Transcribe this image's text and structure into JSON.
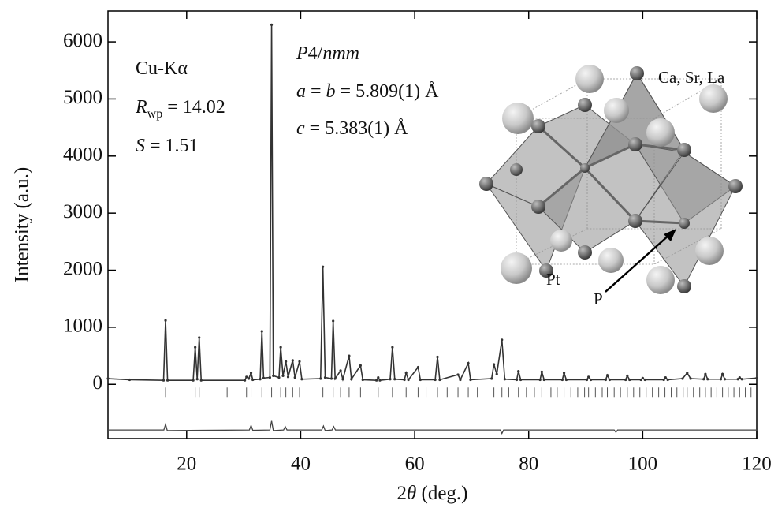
{
  "chart_data": {
    "type": "line",
    "y_label": "Intensity (a.u.)",
    "x_label": [
      {
        "text": "2"
      },
      {
        "text": "θ",
        "italic": true
      },
      {
        "text": " (deg.)"
      }
    ],
    "xlim": [
      6.2,
      120
    ],
    "ylim": [
      -950,
      6540
    ],
    "xticks": [
      20,
      40,
      60,
      80,
      100,
      120
    ],
    "yticks": [
      0,
      1000,
      2000,
      3000,
      4000,
      5000,
      6000
    ],
    "annotations": [
      {
        "parts": [
          {
            "text": "Cu-Kα"
          }
        ]
      },
      {
        "parts": [
          {
            "text": "R",
            "italic": true
          },
          {
            "text": "wp",
            "subscript": true
          },
          {
            "text": " = 14.02"
          }
        ]
      },
      {
        "parts": [
          {
            "text": "S",
            "italic": true
          },
          {
            "text": " = 1.51"
          }
        ]
      },
      {
        "parts": [
          {
            "text": "P",
            "italic": true
          },
          {
            "text": "4/"
          },
          {
            "text": "nmm",
            "italic": true
          }
        ]
      },
      {
        "parts": [
          {
            "text": "a",
            "italic": true
          },
          {
            "text": " = "
          },
          {
            "text": "b",
            "italic": true
          },
          {
            "text": " = 5.809(1) Å"
          }
        ]
      },
      {
        "parts": [
          {
            "text": "c",
            "italic": true
          },
          {
            "text": " = 5.383(1) Å"
          }
        ]
      },
      {
        "parts": [
          {
            "text": "Ca, Sr, La"
          }
        ]
      },
      {
        "parts": [
          {
            "text": "Pt"
          }
        ]
      },
      {
        "parts": [
          {
            "text": "P"
          }
        ]
      }
    ],
    "observed": {
      "color": "#333333",
      "x": [
        6.2,
        10,
        15.95,
        16.3,
        16.65,
        21.15,
        21.5,
        21.85,
        22.2,
        22.55,
        30.2,
        30.5,
        30.9,
        31.3,
        31.6,
        32.9,
        33.2,
        33.5,
        34.6,
        34.9,
        35.2,
        36.2,
        36.5,
        36.9,
        37.4,
        37.8,
        38.6,
        39.0,
        39.8,
        40.2,
        43.5,
        43.9,
        44.3,
        45.4,
        45.7,
        46.05,
        47.0,
        47.4,
        48.5,
        48.9,
        50.5,
        50.9,
        53.3,
        53.6,
        53.9,
        55.7,
        56.1,
        56.5,
        58.2,
        58.5,
        58.9,
        60.6,
        61.0,
        63.6,
        64.0,
        64.4,
        67.6,
        68.0,
        69.4,
        69.8,
        73.5,
        73.9,
        74.4,
        75.3,
        75.8,
        77.9,
        78.2,
        78.6,
        82.0,
        82.3,
        82.7,
        85.9,
        86.2,
        86.6,
        90.2,
        90.5,
        90.9,
        93.5,
        93.8,
        94.2,
        97.0,
        97.3,
        97.7,
        99.7,
        100.0,
        100.4,
        103.7,
        104.0,
        104.4,
        107.0,
        107.8,
        108.4,
        110.7,
        111.0,
        111.4,
        113.7,
        114.0,
        114.4,
        116.7,
        117.0,
        117.4,
        120
      ],
      "values": [
        100,
        80,
        70,
        1120,
        70,
        70,
        650,
        90,
        820,
        70,
        70,
        130,
        100,
        200,
        80,
        90,
        930,
        110,
        120,
        6300,
        150,
        120,
        650,
        150,
        400,
        130,
        420,
        120,
        400,
        90,
        100,
        2060,
        120,
        100,
        1110,
        100,
        240,
        90,
        500,
        90,
        330,
        80,
        70,
        120,
        70,
        90,
        650,
        90,
        80,
        200,
        80,
        300,
        80,
        80,
        480,
        80,
        170,
        80,
        370,
        80,
        100,
        350,
        180,
        780,
        90,
        80,
        230,
        80,
        80,
        220,
        80,
        80,
        200,
        80,
        80,
        130,
        80,
        80,
        160,
        80,
        80,
        150,
        80,
        80,
        110,
        80,
        80,
        120,
        80,
        100,
        200,
        100,
        90,
        180,
        90,
        90,
        180,
        90,
        90,
        120,
        90,
        110
      ]
    },
    "difference": {
      "color": "#444444",
      "x": [
        6.2,
        16.0,
        16.3,
        16.6,
        31.0,
        31.3,
        31.6,
        34.6,
        34.9,
        35.2,
        37.0,
        37.3,
        37.6,
        43.7,
        44.0,
        44.3,
        45.5,
        45.8,
        46.1,
        75.0,
        75.3,
        75.6,
        95.0,
        95.3,
        95.6,
        120
      ],
      "values": [
        -800,
        -800,
        -700,
        -810,
        -800,
        -720,
        -805,
        -800,
        -640,
        -810,
        -800,
        -740,
        -800,
        -800,
        -730,
        -810,
        -800,
        -740,
        -800,
        -800,
        -860,
        -800,
        -800,
        -840,
        -800,
        -800
      ]
    },
    "reflections": {
      "color": "#555555",
      "x": [
        16.3,
        21.5,
        22.2,
        27.1,
        30.5,
        31.3,
        33.2,
        34.9,
        36.5,
        37.4,
        38.6,
        39.8,
        43.9,
        45.7,
        47.0,
        48.5,
        50.5,
        53.6,
        56.1,
        58.5,
        60.6,
        62.0,
        64.0,
        65.7,
        67.6,
        69.4,
        71.0,
        73.9,
        75.3,
        76.5,
        78.2,
        79.6,
        81.0,
        82.3,
        83.9,
        85.0,
        86.2,
        87.4,
        88.6,
        89.8,
        90.5,
        91.7,
        92.9,
        93.8,
        95.0,
        96.1,
        97.3,
        98.4,
        99.5,
        100.6,
        101.7,
        102.8,
        103.9,
        105.0,
        106.0,
        107.1,
        107.8,
        108.9,
        110.0,
        111.0,
        112.0,
        113.0,
        114.0,
        115.0,
        116.0,
        117.0,
        118.0,
        119.0
      ]
    }
  }
}
